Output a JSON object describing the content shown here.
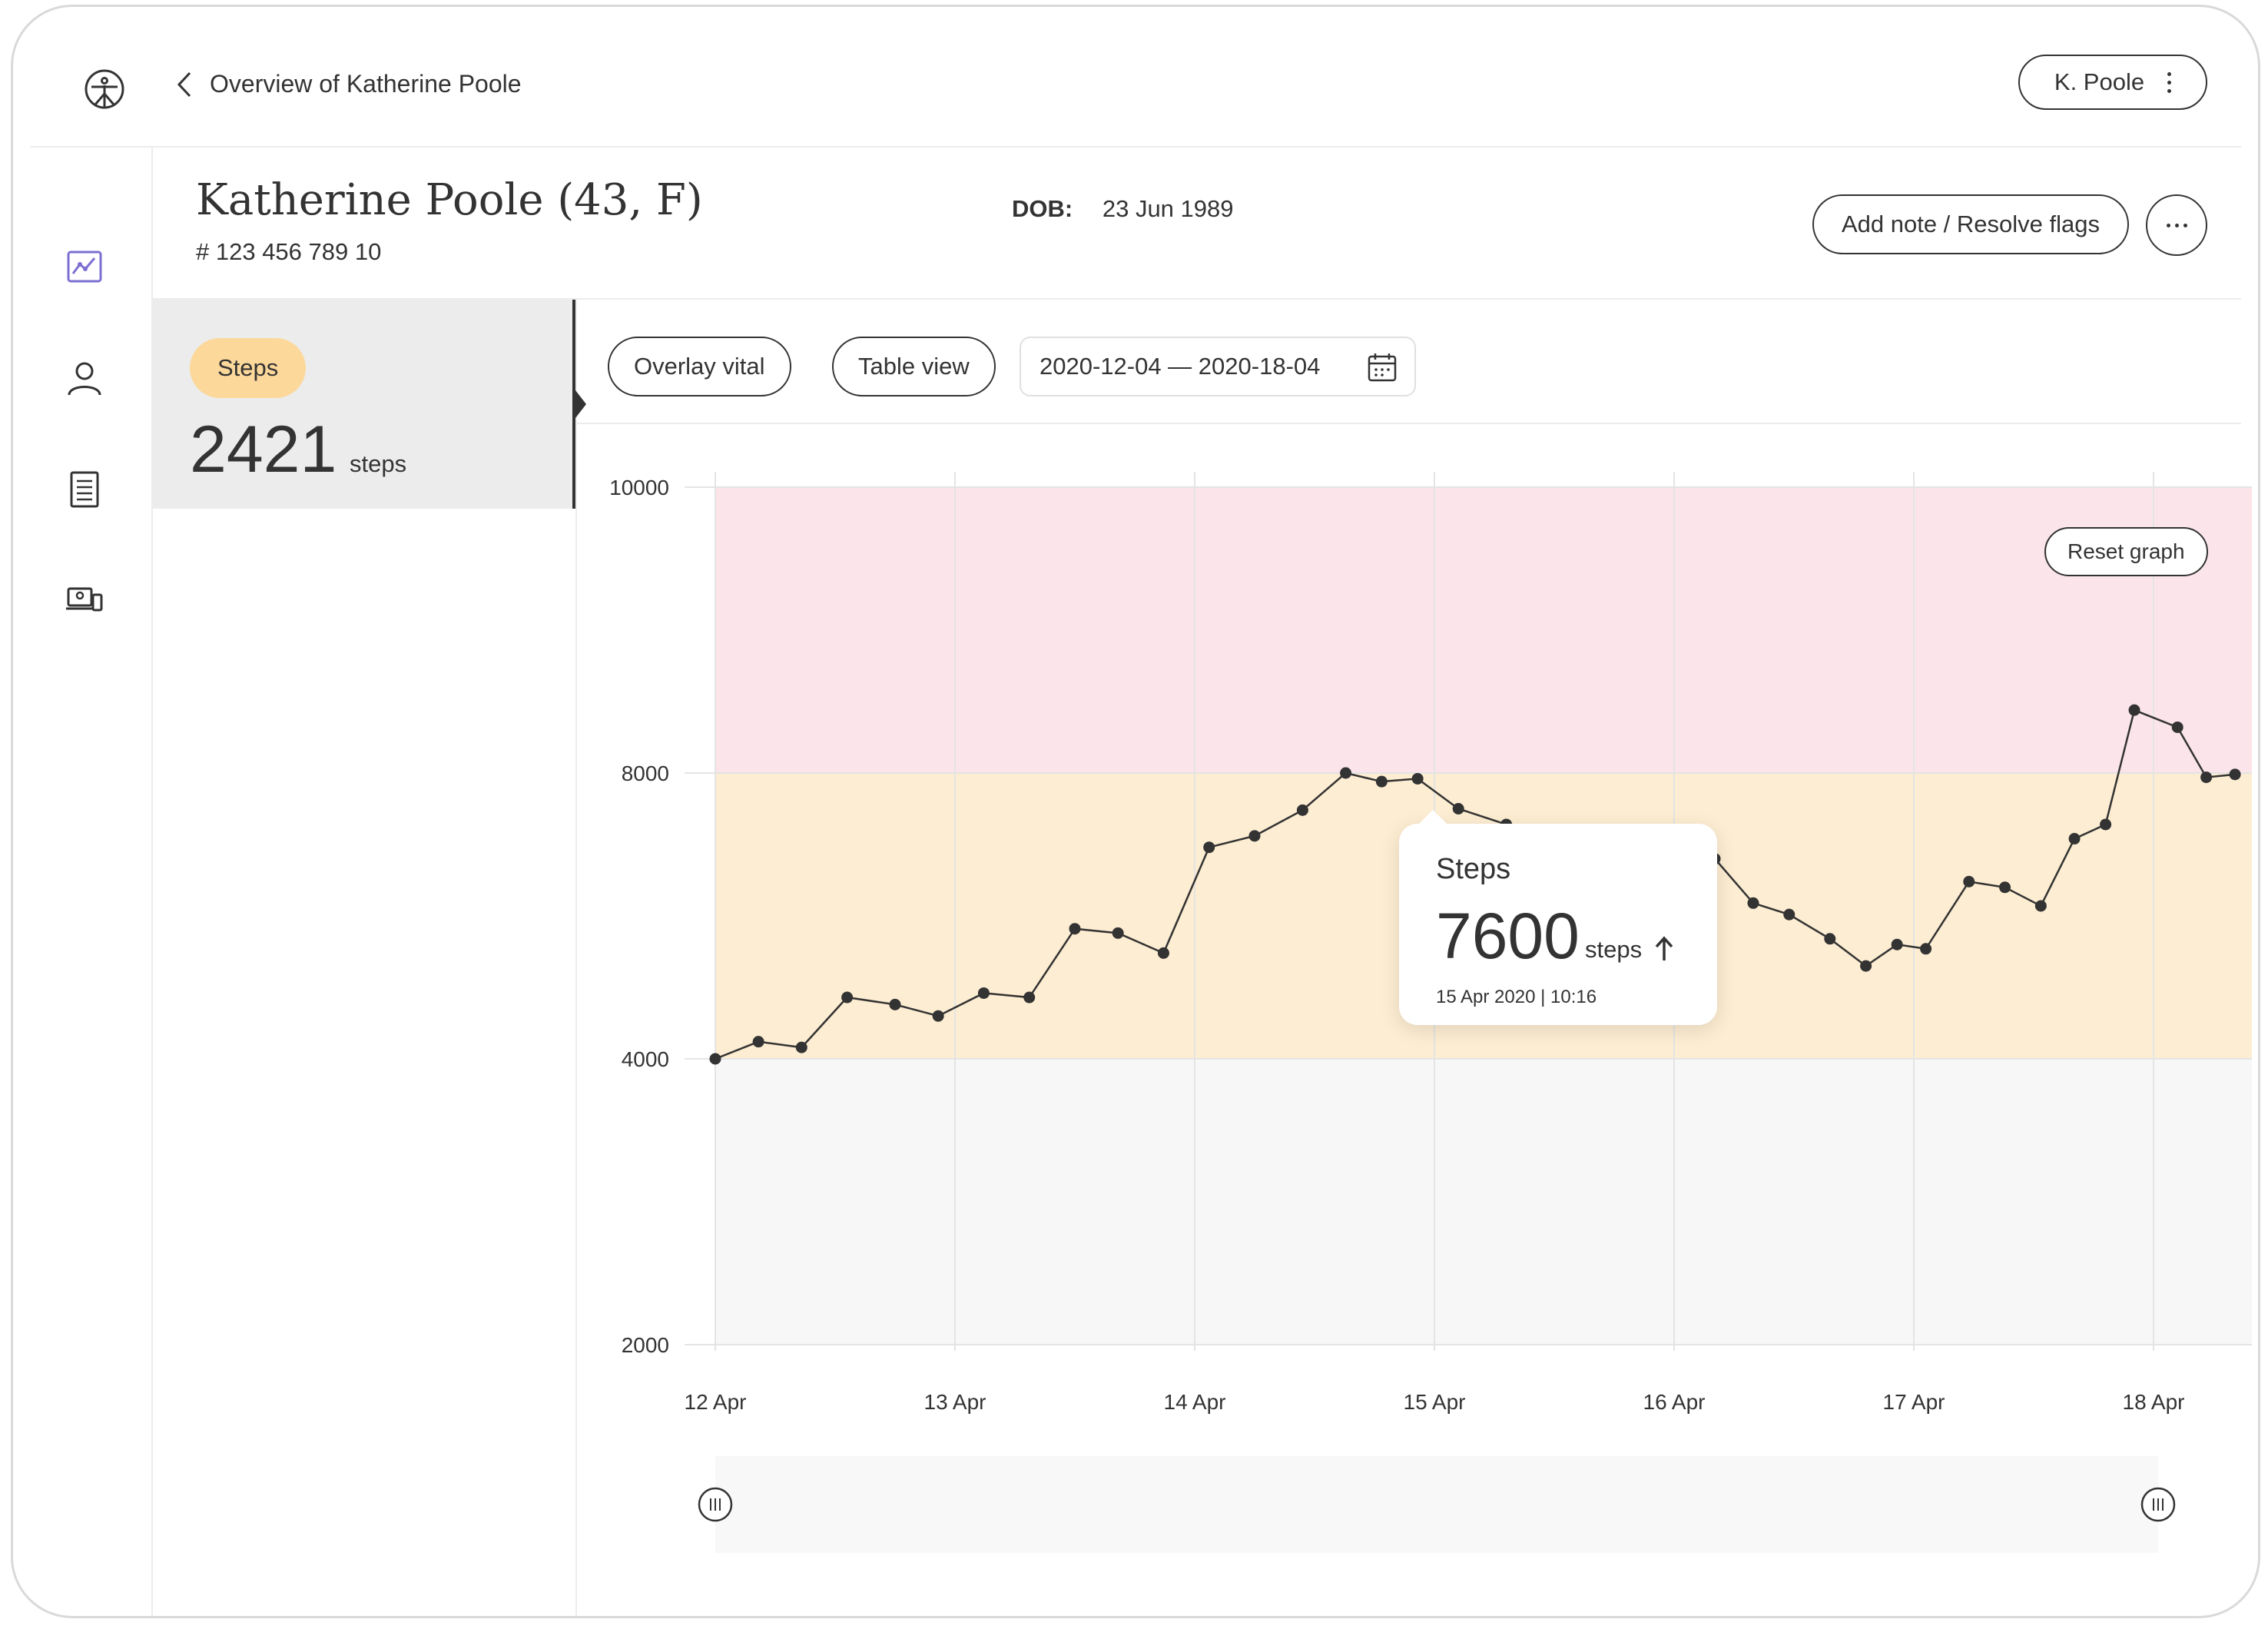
{
  "header": {
    "back_label": "Overview of Katherine Poole",
    "user_label": "K. Poole"
  },
  "patient": {
    "name": "Katherine Poole (43, F)",
    "id": "# 123 456 789 10",
    "dob_label": "DOB:",
    "dob_value": "23 Jun 1989",
    "add_note_label": "Add note / Resolve flags"
  },
  "nav": {
    "icons": [
      "chart-icon",
      "person-icon",
      "document-icon",
      "devices-icon"
    ]
  },
  "vital": {
    "name": "Steps",
    "value": "2421",
    "unit": "steps",
    "badge_color": "#fcd89a"
  },
  "toolbar": {
    "overlay_label": "Overlay vital",
    "table_label": "Table view",
    "date_range": "2020-12-04 — 2020-18-04"
  },
  "chart": {
    "reset_label": "Reset graph"
  },
  "tooltip": {
    "title": "Steps",
    "value": "7600",
    "unit": "steps",
    "meta": "15 Apr 2020 | 10:16"
  },
  "colors": {
    "high_band": "#fbe5ea",
    "mid_band": "#fdedd2",
    "low_band": "#f7f7f7",
    "line": "#333333",
    "accent": "#7b6fd1"
  },
  "chart_data": {
    "type": "line",
    "y_ticks": [
      "10000",
      "8000",
      "4000",
      "2000"
    ],
    "x_ticks": [
      "12 Apr",
      "13 Apr",
      "14 Apr",
      "15 Apr",
      "16 Apr",
      "17 Apr",
      "18 Apr"
    ],
    "bands": [
      {
        "from": 8000,
        "to": 10000,
        "color": "#fbe5ea"
      },
      {
        "from": 4000,
        "to": 8000,
        "color": "#fdedd2"
      },
      {
        "from": 2000,
        "to": 4000,
        "color": "#f7f7f7"
      }
    ],
    "series": [
      {
        "x": [
          12.0,
          12.18,
          12.36,
          12.55,
          12.75,
          12.93,
          13.12,
          13.31,
          13.5,
          13.68,
          13.87,
          14.06,
          14.25,
          14.45,
          14.63,
          14.78,
          14.93,
          15.1,
          15.3,
          15.55,
          15.85,
          16.17,
          16.33,
          16.48,
          16.65,
          16.8,
          16.93,
          17.05,
          17.23,
          17.38,
          17.53,
          17.67,
          17.8,
          17.92,
          18.1,
          18.22,
          18.34
        ],
        "y": [
          4000,
          4240,
          4160,
          4860,
          4760,
          4600,
          4920,
          4860,
          5820,
          5760,
          5480,
          6960,
          7120,
          7480,
          8000,
          7880,
          7920,
          7500,
          7280,
          7120,
          6900,
          6800,
          6180,
          6020,
          5680,
          5300,
          5600,
          5540,
          6480,
          6400,
          6140,
          7080,
          7280,
          8440,
          8320,
          7940,
          7980
        ]
      }
    ]
  }
}
